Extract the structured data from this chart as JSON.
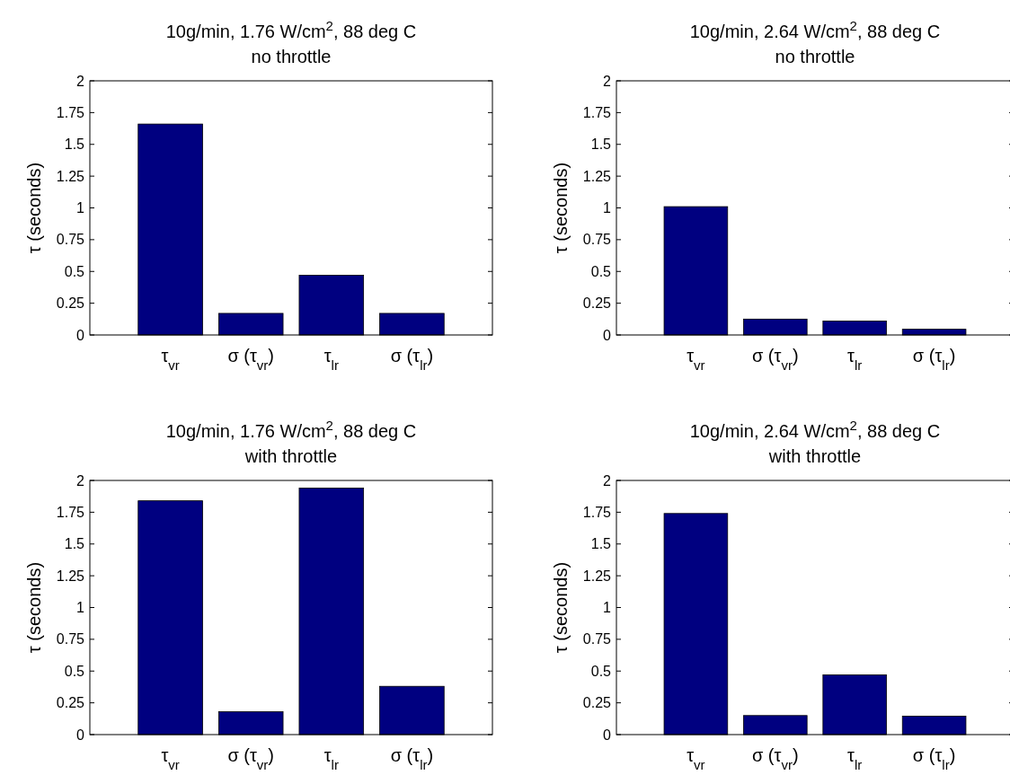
{
  "chart_data": [
    {
      "type": "bar",
      "title": "10g/min, 1.76 W/cm$^{2}$, 88 deg C",
      "subtitle": "no throttle",
      "ylabel": "τ (seconds)",
      "categories": [
        "τ$_{vr}$",
        "σ (τ$_{vr}$)",
        "τ$_{lr}$",
        "σ (τ$_{lr}$)"
      ],
      "values": [
        1.66,
        0.17,
        0.47,
        0.17
      ],
      "color": "#000080",
      "ylim": [
        0,
        2
      ],
      "yticks": [
        0,
        0.25,
        0.5,
        0.75,
        1,
        1.25,
        1.5,
        1.75,
        2
      ]
    },
    {
      "type": "bar",
      "title": "10g/min, 2.64 W/cm$^{2}$, 88 deg C",
      "subtitle": "no throttle",
      "ylabel": "τ (seconds)",
      "categories": [
        "τ$_{vr}$",
        "σ (τ$_{vr}$)",
        "τ$_{lr}$",
        "σ (τ$_{lr}$)"
      ],
      "values": [
        1.01,
        0.125,
        0.11,
        0.045
      ],
      "color": "#000080",
      "ylim": [
        0,
        2
      ],
      "yticks": [
        0,
        0.25,
        0.5,
        0.75,
        1,
        1.25,
        1.5,
        1.75,
        2
      ]
    },
    {
      "type": "bar",
      "title": "10g/min, 1.76 W/cm$^{2}$, 88 deg C",
      "subtitle": "with throttle",
      "ylabel": "τ (seconds)",
      "categories": [
        "τ$_{vr}$",
        "σ (τ$_{vr}$)",
        "τ$_{lr}$",
        "σ (τ$_{lr}$)"
      ],
      "values": [
        1.84,
        0.18,
        1.94,
        0.38
      ],
      "color": "#000080",
      "ylim": [
        0,
        2
      ],
      "yticks": [
        0,
        0.25,
        0.5,
        0.75,
        1,
        1.25,
        1.5,
        1.75,
        2
      ]
    },
    {
      "type": "bar",
      "title": "10g/min, 2.64 W/cm$^{2}$, 88 deg C",
      "subtitle": "with throttle",
      "ylabel": "τ (seconds)",
      "categories": [
        "τ$_{vr}$",
        "σ (τ$_{vr}$)",
        "τ$_{lr}$",
        "σ (τ$_{lr}$)"
      ],
      "values": [
        1.74,
        0.15,
        0.47,
        0.145
      ],
      "color": "#000080",
      "ylim": [
        0,
        2
      ],
      "yticks": [
        0,
        0.25,
        0.5,
        0.75,
        1,
        1.25,
        1.5,
        1.75,
        2
      ]
    }
  ]
}
